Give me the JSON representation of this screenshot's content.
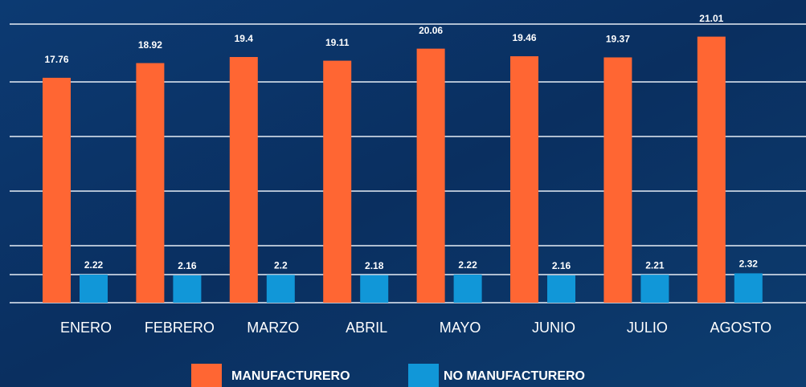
{
  "chart_data": {
    "type": "bar",
    "categories": [
      "ENERO",
      "FEBRERO",
      "MARZO",
      "ABRIL",
      "MAYO",
      "JUNIO",
      "JULIO",
      "AGOSTO"
    ],
    "series": [
      {
        "name": "MANUFACTURERO",
        "color": "#ff6633",
        "values": [
          17.76,
          18.92,
          19.4,
          19.11,
          20.06,
          19.46,
          19.37,
          21.01
        ]
      },
      {
        "name": "NO MANUFACTURERO",
        "color": "#1197d8",
        "values": [
          2.22,
          2.16,
          2.2,
          2.18,
          2.22,
          2.16,
          2.21,
          2.32
        ]
      }
    ],
    "ylim": [
      0,
      22
    ]
  }
}
